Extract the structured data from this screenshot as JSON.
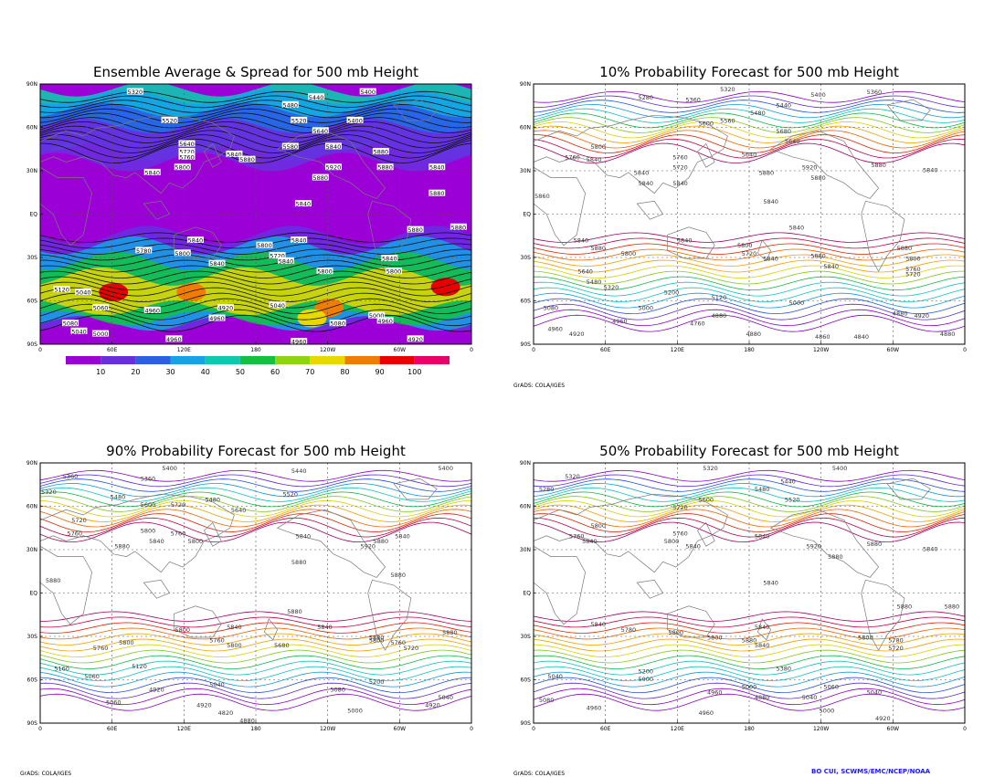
{
  "panels": [
    {
      "id": "p1",
      "title": "Ensemble Average & Spread for 500 mb Height",
      "kind": "spread"
    },
    {
      "id": "p2",
      "title": "10% Probability Forecast for 500 mb Height",
      "kind": "prob"
    },
    {
      "id": "p3",
      "title": "90% Probability Forecast for 500 mb Height",
      "kind": "prob"
    },
    {
      "id": "p4",
      "title": "50% Probability Forecast for 500 mb Height",
      "kind": "prob"
    }
  ],
  "axes": {
    "lat_labels": [
      "90N",
      "60N",
      "30N",
      "EQ",
      "30S",
      "60S",
      "90S"
    ],
    "lon_labels": [
      "0",
      "60E",
      "120E",
      "180",
      "120W",
      "60W",
      "0"
    ]
  },
  "colorbar": {
    "labels": [
      "10",
      "20",
      "30",
      "40",
      "50",
      "60",
      "70",
      "80",
      "90",
      "100"
    ],
    "colors": [
      "#9b00d6",
      "#6a2de0",
      "#2b5fe8",
      "#13a4e8",
      "#10c8b0",
      "#11c240",
      "#8fd414",
      "#e8d800",
      "#f07c00",
      "#e80000",
      "#e8006a"
    ]
  },
  "contour_colors": [
    "#8a00c8",
    "#5b2bd9",
    "#2050e0",
    "#1098e0",
    "#10c0c0",
    "#10b840",
    "#80c820",
    "#d8d000",
    "#f0a000",
    "#f06000",
    "#e02000",
    "#c00040",
    "#a00060"
  ],
  "panel_labels": {
    "p1": [
      [
        "5320",
        0.22,
        0.03
      ],
      [
        "5400",
        0.76,
        0.03
      ],
      [
        "5440",
        0.64,
        0.05
      ],
      [
        "5480",
        0.58,
        0.08
      ],
      [
        "5520",
        0.6,
        0.14
      ],
      [
        "5400",
        0.73,
        0.14
      ],
      [
        "5520",
        0.3,
        0.14
      ],
      [
        "5640",
        0.34,
        0.23
      ],
      [
        "5720",
        0.34,
        0.26
      ],
      [
        "5760",
        0.34,
        0.28
      ],
      [
        "5800",
        0.33,
        0.32
      ],
      [
        "5840",
        0.45,
        0.27
      ],
      [
        "5880",
        0.48,
        0.29
      ],
      [
        "5840",
        0.26,
        0.34
      ],
      [
        "5580",
        0.58,
        0.24
      ],
      [
        "5640",
        0.65,
        0.18
      ],
      [
        "5840",
        0.68,
        0.24
      ],
      [
        "5880",
        0.79,
        0.26
      ],
      [
        "5920",
        0.68,
        0.32
      ],
      [
        "5880",
        0.8,
        0.32
      ],
      [
        "5840",
        0.92,
        0.32
      ],
      [
        "5880",
        0.65,
        0.36
      ],
      [
        "5880",
        0.92,
        0.42
      ],
      [
        "5840",
        0.61,
        0.46
      ],
      [
        "5880",
        0.87,
        0.56
      ],
      [
        "5880",
        0.97,
        0.55
      ],
      [
        "5840",
        0.36,
        0.6
      ],
      [
        "5800",
        0.52,
        0.62
      ],
      [
        "5840",
        0.6,
        0.6
      ],
      [
        "5800",
        0.33,
        0.65
      ],
      [
        "5780",
        0.24,
        0.64
      ],
      [
        "5720",
        0.55,
        0.66
      ],
      [
        "5840",
        0.57,
        0.68
      ],
      [
        "5800",
        0.66,
        0.72
      ],
      [
        "5840",
        0.81,
        0.67
      ],
      [
        "5800",
        0.82,
        0.72
      ],
      [
        "5840",
        0.41,
        0.69
      ],
      [
        "5120",
        0.05,
        0.79
      ],
      [
        "5040",
        0.1,
        0.8
      ],
      [
        "5060",
        0.14,
        0.86
      ],
      [
        "4960",
        0.26,
        0.87
      ],
      [
        "4920",
        0.43,
        0.86
      ],
      [
        "4960",
        0.41,
        0.9
      ],
      [
        "5040",
        0.55,
        0.85
      ],
      [
        "5080",
        0.69,
        0.92
      ],
      [
        "5000",
        0.78,
        0.89
      ],
      [
        "4960",
        0.8,
        0.91
      ],
      [
        "5080",
        0.07,
        0.92
      ],
      [
        "5040",
        0.09,
        0.95
      ],
      [
        "5000",
        0.14,
        0.96
      ],
      [
        "4960",
        0.31,
        0.98
      ],
      [
        "4960",
        0.6,
        0.99
      ],
      [
        "4920",
        0.87,
        0.98
      ]
    ],
    "p2": [
      [
        "5320",
        0.45,
        0.02
      ],
      [
        "5280",
        0.26,
        0.05
      ],
      [
        "5360",
        0.37,
        0.06
      ],
      [
        "5440",
        0.58,
        0.08
      ],
      [
        "5400",
        0.66,
        0.04
      ],
      [
        "5360",
        0.79,
        0.03
      ],
      [
        "5480",
        0.52,
        0.11
      ],
      [
        "5600",
        0.4,
        0.15
      ],
      [
        "5560",
        0.45,
        0.14
      ],
      [
        "5640",
        0.6,
        0.22
      ],
      [
        "5680",
        0.58,
        0.18
      ],
      [
        "5800",
        0.15,
        0.24
      ],
      [
        "5760",
        0.09,
        0.28
      ],
      [
        "5840",
        0.14,
        0.29
      ],
      [
        "5720",
        0.34,
        0.32
      ],
      [
        "5760",
        0.34,
        0.28
      ],
      [
        "5640",
        0.5,
        0.27
      ],
      [
        "5840",
        0.25,
        0.34
      ],
      [
        "5840",
        0.26,
        0.38
      ],
      [
        "5880",
        0.54,
        0.34
      ],
      [
        "5840",
        0.34,
        0.38
      ],
      [
        "5920",
        0.64,
        0.32
      ],
      [
        "5880",
        0.66,
        0.36
      ],
      [
        "5880",
        0.8,
        0.31
      ],
      [
        "5840",
        0.92,
        0.33
      ],
      [
        "5860",
        0.02,
        0.43
      ],
      [
        "5840",
        0.55,
        0.45
      ],
      [
        "5840",
        0.61,
        0.55
      ],
      [
        "5880",
        0.15,
        0.63
      ],
      [
        "5840",
        0.11,
        0.6
      ],
      [
        "5800",
        0.22,
        0.65
      ],
      [
        "5840",
        0.35,
        0.6
      ],
      [
        "5800",
        0.49,
        0.62
      ],
      [
        "5840",
        0.55,
        0.67
      ],
      [
        "5880",
        0.66,
        0.66
      ],
      [
        "5720",
        0.5,
        0.65
      ],
      [
        "5840",
        0.69,
        0.7
      ],
      [
        "5880",
        0.86,
        0.63
      ],
      [
        "5800",
        0.88,
        0.67
      ],
      [
        "5760",
        0.88,
        0.71
      ],
      [
        "5720",
        0.88,
        0.73
      ],
      [
        "5640",
        0.12,
        0.72
      ],
      [
        "5480",
        0.14,
        0.76
      ],
      [
        "5320",
        0.18,
        0.78
      ],
      [
        "5200",
        0.32,
        0.8
      ],
      [
        "5120",
        0.43,
        0.82
      ],
      [
        "5000",
        0.26,
        0.86
      ],
      [
        "4960",
        0.2,
        0.91
      ],
      [
        "4920",
        0.1,
        0.96
      ],
      [
        "4880",
        0.43,
        0.89
      ],
      [
        "4760",
        0.38,
        0.92
      ],
      [
        "4880",
        0.51,
        0.96
      ],
      [
        "4860",
        0.67,
        0.97
      ],
      [
        "4840",
        0.76,
        0.97
      ],
      [
        "4880",
        0.85,
        0.88
      ],
      [
        "4920",
        0.9,
        0.89
      ],
      [
        "4880",
        0.96,
        0.96
      ],
      [
        "5000",
        0.61,
        0.84
      ],
      [
        "5080",
        0.04,
        0.86
      ],
      [
        "4960",
        0.05,
        0.94
      ]
    ],
    "p3": [
      [
        "5400",
        0.3,
        0.02
      ],
      [
        "5440",
        0.6,
        0.03
      ],
      [
        "5400",
        0.94,
        0.02
      ],
      [
        "5360",
        0.07,
        0.05
      ],
      [
        "5320",
        0.02,
        0.11
      ],
      [
        "5360",
        0.25,
        0.06
      ],
      [
        "5480",
        0.18,
        0.13
      ],
      [
        "5480",
        0.4,
        0.14
      ],
      [
        "5520",
        0.58,
        0.12
      ],
      [
        "5600",
        0.25,
        0.16
      ],
      [
        "5640",
        0.46,
        0.18
      ],
      [
        "5720",
        0.32,
        0.16
      ],
      [
        "5760",
        0.32,
        0.27
      ],
      [
        "5800",
        0.36,
        0.3
      ],
      [
        "5720",
        0.09,
        0.22
      ],
      [
        "5760",
        0.08,
        0.27
      ],
      [
        "5800",
        0.25,
        0.26
      ],
      [
        "5840",
        0.27,
        0.3
      ],
      [
        "5880",
        0.19,
        0.32
      ],
      [
        "5840",
        0.61,
        0.28
      ],
      [
        "5880",
        0.79,
        0.3
      ],
      [
        "5840",
        0.84,
        0.28
      ],
      [
        "5920",
        0.76,
        0.32
      ],
      [
        "5880",
        0.6,
        0.38
      ],
      [
        "5880",
        0.03,
        0.45
      ],
      [
        "5880",
        0.83,
        0.43
      ],
      [
        "5880",
        0.59,
        0.57
      ],
      [
        "5880",
        0.78,
        0.67
      ],
      [
        "5880",
        0.95,
        0.65
      ],
      [
        "5840",
        0.45,
        0.63
      ],
      [
        "5800",
        0.33,
        0.64
      ],
      [
        "5760",
        0.41,
        0.68
      ],
      [
        "5800",
        0.45,
        0.7
      ],
      [
        "5680",
        0.56,
        0.7
      ],
      [
        "5840",
        0.66,
        0.63
      ],
      [
        "5800",
        0.78,
        0.68
      ],
      [
        "5760",
        0.83,
        0.69
      ],
      [
        "5720",
        0.86,
        0.71
      ],
      [
        "5760",
        0.14,
        0.71
      ],
      [
        "5800",
        0.2,
        0.69
      ],
      [
        "5120",
        0.23,
        0.78
      ],
      [
        "5160",
        0.05,
        0.79
      ],
      [
        "5060",
        0.12,
        0.82
      ],
      [
        "4920",
        0.27,
        0.87
      ],
      [
        "5040",
        0.41,
        0.85
      ],
      [
        "5080",
        0.69,
        0.87
      ],
      [
        "5200",
        0.78,
        0.84
      ],
      [
        "4920",
        0.38,
        0.93
      ],
      [
        "4820",
        0.43,
        0.96
      ],
      [
        "4880",
        0.48,
        0.99
      ],
      [
        "4920",
        0.91,
        0.93
      ],
      [
        "5040",
        0.94,
        0.9
      ],
      [
        "5060",
        0.17,
        0.92
      ],
      [
        "5000",
        0.73,
        0.95
      ]
    ],
    "p4": [
      [
        "5320",
        0.41,
        0.02
      ],
      [
        "5400",
        0.71,
        0.02
      ],
      [
        "5320",
        0.09,
        0.05
      ],
      [
        "5280",
        0.03,
        0.1
      ],
      [
        "5440",
        0.59,
        0.07
      ],
      [
        "5480",
        0.53,
        0.1
      ],
      [
        "5520",
        0.6,
        0.14
      ],
      [
        "5600",
        0.4,
        0.14
      ],
      [
        "5720",
        0.34,
        0.17
      ],
      [
        "5760",
        0.34,
        0.27
      ],
      [
        "5800",
        0.15,
        0.24
      ],
      [
        "5760",
        0.1,
        0.28
      ],
      [
        "5840",
        0.13,
        0.3
      ],
      [
        "5800",
        0.32,
        0.3
      ],
      [
        "5840",
        0.37,
        0.32
      ],
      [
        "5840",
        0.53,
        0.28
      ],
      [
        "5880",
        0.79,
        0.31
      ],
      [
        "5920",
        0.65,
        0.32
      ],
      [
        "5880",
        0.7,
        0.36
      ],
      [
        "5840",
        0.92,
        0.33
      ],
      [
        "5840",
        0.55,
        0.46
      ],
      [
        "5880",
        0.86,
        0.55
      ],
      [
        "5880",
        0.97,
        0.55
      ],
      [
        "5840",
        0.15,
        0.62
      ],
      [
        "5780",
        0.22,
        0.64
      ],
      [
        "5800",
        0.33,
        0.65
      ],
      [
        "5840",
        0.53,
        0.63
      ],
      [
        "5800",
        0.42,
        0.67
      ],
      [
        "5880",
        0.5,
        0.68
      ],
      [
        "5840",
        0.53,
        0.7
      ],
      [
        "5800",
        0.77,
        0.67
      ],
      [
        "5720",
        0.84,
        0.71
      ],
      [
        "5780",
        0.84,
        0.68
      ],
      [
        "5200",
        0.26,
        0.8
      ],
      [
        "5040",
        0.05,
        0.82
      ],
      [
        "5000",
        0.26,
        0.83
      ],
      [
        "5080",
        0.03,
        0.91
      ],
      [
        "4960",
        0.14,
        0.94
      ],
      [
        "4960",
        0.42,
        0.88
      ],
      [
        "4960",
        0.4,
        0.96
      ],
      [
        "5000",
        0.5,
        0.86
      ],
      [
        "4880",
        0.53,
        0.9
      ],
      [
        "5040",
        0.64,
        0.9
      ],
      [
        "5380",
        0.58,
        0.79
      ],
      [
        "5000",
        0.68,
        0.95
      ],
      [
        "4920",
        0.81,
        0.98
      ],
      [
        "5040",
        0.79,
        0.88
      ],
      [
        "5060",
        0.69,
        0.86
      ]
    ]
  },
  "footer_left": "GrADS: COLA/IGES",
  "credit": "BO CUI, SCWMS/EMC/NCEP/NOAA"
}
